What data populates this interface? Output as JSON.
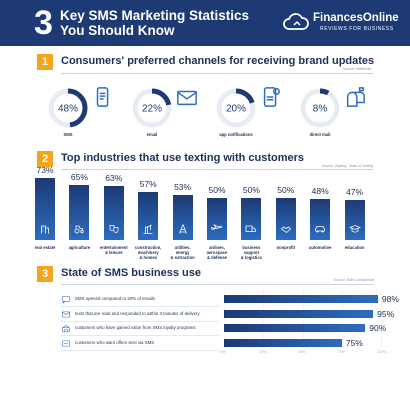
{
  "header": {
    "number": "3",
    "title_line1": "Key SMS Marketing Statistics",
    "title_line2": "You Should Know",
    "brand": "FinancesOnline",
    "brand_sub": "REVIEWS FOR BUSINESS"
  },
  "sections": [
    {
      "number": "1",
      "title": "Consumers' preferred channels for receiving brand updates",
      "source": "Source: eMarketer"
    },
    {
      "number": "2",
      "title": "Top industries that use texting with customers",
      "source": "Source: Zipwhip, State of Texting"
    },
    {
      "number": "3",
      "title": "State of SMS business use",
      "source": "Source: SMS Comparison"
    }
  ],
  "icons": {
    "logo": "cloud-logo-icon",
    "channels": [
      "phone-sms-icon",
      "envelope-icon",
      "app-notification-icon",
      "mailbox-icon"
    ],
    "industries": [
      "building-icon",
      "tractor-icon",
      "theater-icon",
      "construction-icon",
      "utilities-icon",
      "airplane-icon",
      "truck-icon",
      "handshake-icon",
      "car-icon",
      "graduation-cap-icon"
    ],
    "uses": [
      "sms-icon",
      "message-icon",
      "loyalty-icon",
      "offer-icon"
    ]
  },
  "colors": {
    "navy": "#1d3a74",
    "blue": "#2c6cc0",
    "orange": "#f4a41d",
    "ring": "#e7ecf3"
  },
  "chart_data": [
    {
      "type": "pie",
      "categories": [
        "SMS",
        "email",
        "app notifications",
        "direct mail"
      ],
      "values": [
        48,
        22,
        20,
        8
      ],
      "value_labels": [
        "48%",
        "22%",
        "20%",
        "8%"
      ],
      "title": "Consumers' preferred channels for receiving brand updates"
    },
    {
      "type": "bar",
      "categories": [
        "real estate",
        "agriculture",
        "entertainment & leisure",
        "construction, machinery & homes",
        "utilities, energy & extraction",
        "airlines, aerospace & defense",
        "business support & logistics",
        "nonprofit",
        "automotive",
        "education"
      ],
      "category_lines": [
        [
          "real estate"
        ],
        [
          "agriculture"
        ],
        [
          "entertainment",
          "& leisure"
        ],
        [
          "construction,",
          "machinery",
          "& homes"
        ],
        [
          "utilities,",
          "energy",
          "& extraction"
        ],
        [
          "airlines,",
          "aerospace",
          "& defense"
        ],
        [
          "business",
          "support",
          "& logistics"
        ],
        [
          "nonprofit"
        ],
        [
          "automotive"
        ],
        [
          "education"
        ]
      ],
      "values": [
        73,
        65,
        63,
        57,
        53,
        50,
        50,
        50,
        48,
        47
      ],
      "value_labels": [
        "73%",
        "65%",
        "63%",
        "57%",
        "53%",
        "50%",
        "50%",
        "50%",
        "48%",
        "47%"
      ],
      "title": "Top industries that use texting with customers",
      "ylim": [
        0,
        100
      ]
    },
    {
      "type": "bar",
      "orientation": "horizontal",
      "categories": [
        "SMS opened compared to 20% of emails",
        "texts that are read and responded to within 3 minutes of delivery",
        "customers who have gained value from SMS loyalty programs",
        "customers who want offers sent via SMS"
      ],
      "values": [
        98,
        95,
        90,
        75
      ],
      "value_labels": [
        "98%",
        "95%",
        "90%",
        "75%"
      ],
      "xticks": [
        "0%",
        "25%",
        "50%",
        "75%",
        "100%"
      ],
      "xlim": [
        0,
        100
      ],
      "title": "State of SMS business use",
      "grid": true
    }
  ]
}
